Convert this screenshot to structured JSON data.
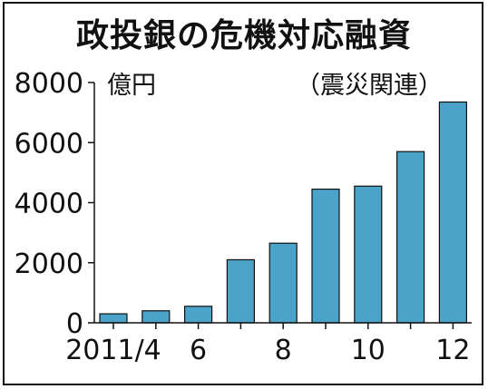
{
  "chart_data": {
    "type": "bar",
    "title": "政投銀の危機対応融資",
    "unit_label": "億円",
    "note": "（震災関連）",
    "x_tick_labels": [
      {
        "index": 0,
        "label": "2011/4"
      },
      {
        "index": 2,
        "label": "6"
      },
      {
        "index": 4,
        "label": "8"
      },
      {
        "index": 6,
        "label": "10"
      },
      {
        "index": 8,
        "label": "12"
      }
    ],
    "categories": [
      "2011/4",
      "2011/5",
      "2011/6",
      "2011/7",
      "2011/8",
      "2011/9",
      "2011/10",
      "2011/11",
      "2011/12"
    ],
    "values": [
      300,
      400,
      550,
      2100,
      2650,
      4450,
      4550,
      5700,
      7350
    ],
    "ylim": [
      0,
      8000
    ],
    "yticks": [
      0,
      2000,
      4000,
      6000,
      8000
    ],
    "bar_color": "#4ba3c9",
    "grid": false
  }
}
